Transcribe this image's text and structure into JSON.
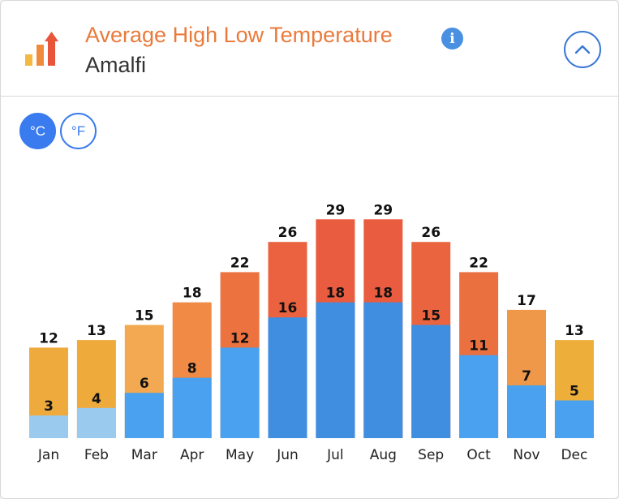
{
  "header": {
    "title": "Average High Low Temperature",
    "location": "Amalfi",
    "info_icon": "i"
  },
  "units": {
    "celsius_label": "°C",
    "fahrenheit_label": "°F",
    "selected": "celsius"
  },
  "colors": {
    "title": "#ea7a3b",
    "accent": "#3a7bef"
  },
  "chart_data": {
    "type": "bar",
    "categories": [
      "Jan",
      "Feb",
      "Mar",
      "Apr",
      "May",
      "Jun",
      "Jul",
      "Aug",
      "Sep",
      "Oct",
      "Nov",
      "Dec"
    ],
    "series": [
      {
        "values": [
          12,
          13,
          15,
          18,
          22,
          26,
          29,
          29,
          26,
          22,
          17,
          13
        ],
        "colors": [
          "#eeaa3d",
          "#eeab3c",
          "#f2a951",
          "#f08a45",
          "#ec7340",
          "#ea623f",
          "#e95c3f",
          "#e95c3f",
          "#ea653f",
          "#eb7040",
          "#f0984a",
          "#edae3a"
        ]
      },
      {
        "values": [
          3,
          4,
          6,
          8,
          12,
          16,
          18,
          18,
          15,
          11,
          7,
          5
        ],
        "colors": [
          "#9acbef",
          "#9acbef",
          "#4aa1f0",
          "#4aa1f0",
          "#4aa1f0",
          "#3f8ee0",
          "#3f8ee0",
          "#3f8ee0",
          "#3f8ee0",
          "#4aa1f0",
          "#4aa1f0",
          "#4aa1f0"
        ]
      }
    ],
    "ylim": [
      0,
      30
    ]
  }
}
